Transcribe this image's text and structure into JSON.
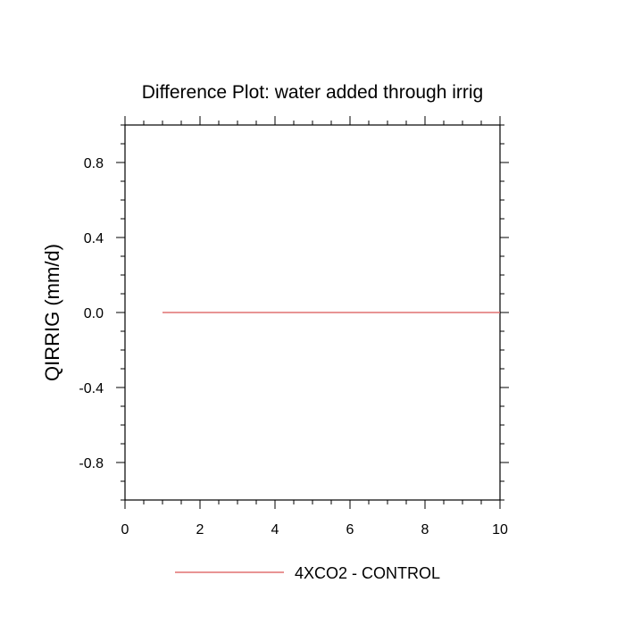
{
  "chart_data": {
    "type": "line",
    "title": "Difference Plot: water added through irrig",
    "xlabel": "",
    "ylabel": "QIRRIG  (mm/d)",
    "xlim": [
      0,
      10
    ],
    "ylim": [
      -1.0,
      1.0
    ],
    "x_major_ticks": [
      0,
      2,
      4,
      6,
      8,
      10
    ],
    "x_tick_labels": [
      "0",
      "2",
      "4",
      "6",
      "8",
      "10"
    ],
    "x_minor_step": 0.5,
    "y_major_ticks": [
      0.8,
      0.4,
      0.0,
      -0.4,
      -0.8
    ],
    "y_tick_labels": [
      "0.8",
      "0.4",
      "0.0",
      "-0.4",
      "-0.8"
    ],
    "y_minor_step": 0.1,
    "grid": false,
    "legend_position": "bottom-center",
    "series": [
      {
        "name": "4XCO2 - CONTROL",
        "color": "#e07070",
        "x": [
          1,
          2,
          3,
          4,
          5,
          6,
          7,
          8,
          9,
          10
        ],
        "y": [
          0,
          0,
          0,
          0,
          0,
          0,
          0,
          0,
          0,
          0
        ]
      }
    ]
  }
}
